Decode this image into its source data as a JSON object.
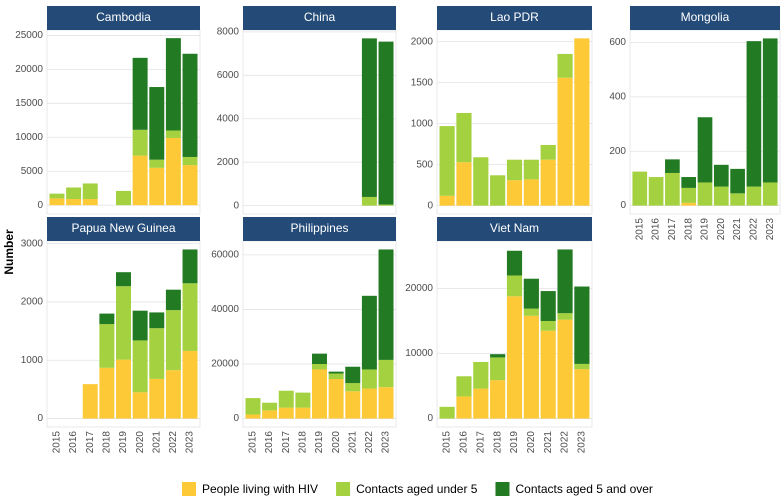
{
  "chart_data": {
    "type": "bar",
    "stacked": true,
    "y_label": "Number",
    "grid": true,
    "categories": [
      "2015",
      "2016",
      "2017",
      "2018",
      "2019",
      "2020",
      "2021",
      "2022",
      "2023"
    ],
    "series": [
      {
        "name": "People living with HIV",
        "color": "#fdc936"
      },
      {
        "name": "Contacts aged under 5",
        "color": "#a4d13f"
      },
      {
        "name": "Contacts aged 5 and over",
        "color": "#227a22"
      }
    ],
    "facets": [
      {
        "title": "Cambodia",
        "ylim": [
          -1300,
          25800
        ],
        "yticks": [
          0,
          5000,
          10000,
          15000,
          20000,
          25000
        ],
        "values": [
          [
            1000,
            900,
            900,
            null,
            0,
            7300,
            5500,
            9900,
            5900
          ],
          [
            700,
            1700,
            2300,
            null,
            2100,
            3800,
            1200,
            1100,
            1200
          ],
          [
            0,
            0,
            0,
            null,
            0,
            10600,
            10700,
            13600,
            15200
          ]
        ]
      },
      {
        "title": "China",
        "ylim": [
          -385,
          8085
        ],
        "yticks": [
          0,
          2000,
          4000,
          6000,
          8000
        ],
        "values": [
          [
            null,
            null,
            null,
            null,
            null,
            null,
            null,
            0,
            0
          ],
          [
            null,
            null,
            null,
            null,
            null,
            null,
            null,
            400,
            50
          ],
          [
            null,
            null,
            null,
            null,
            null,
            null,
            null,
            7300,
            7500
          ]
        ]
      },
      {
        "title": "Lao PDR",
        "ylim": [
          -102,
          2142
        ],
        "yticks": [
          0,
          500,
          1000,
          1500,
          2000
        ],
        "values": [
          [
            120,
            530,
            0,
            0,
            310,
            320,
            560,
            1560,
            2040
          ],
          [
            850,
            600,
            590,
            370,
            250,
            240,
            180,
            290,
            0
          ],
          [
            0,
            0,
            0,
            0,
            0,
            0,
            0,
            0,
            0
          ]
        ]
      },
      {
        "title": "Mongolia",
        "ylim": [
          -31,
          646
        ],
        "yticks": [
          0,
          200,
          400,
          600
        ],
        "values": [
          [
            0,
            0,
            0,
            10,
            0,
            0,
            0,
            0,
            0
          ],
          [
            125,
            105,
            120,
            55,
            85,
            70,
            45,
            70,
            85
          ],
          [
            0,
            0,
            50,
            40,
            240,
            80,
            90,
            535,
            530
          ]
        ]
      },
      {
        "title": "Papua New Guinea",
        "ylim": [
          -145,
          3045
        ],
        "yticks": [
          0,
          1000,
          2000,
          3000
        ],
        "values": [
          [
            null,
            null,
            590,
            870,
            1010,
            450,
            680,
            830,
            1160
          ],
          [
            null,
            null,
            0,
            750,
            1260,
            890,
            870,
            1030,
            1160
          ],
          [
            null,
            null,
            0,
            180,
            240,
            510,
            270,
            350,
            580
          ]
        ]
      },
      {
        "title": "Philippines",
        "ylim": [
          -3100,
          65100
        ],
        "yticks": [
          0,
          20000,
          40000,
          60000
        ],
        "values": [
          [
            1500,
            3000,
            4000,
            4000,
            18000,
            14500,
            10000,
            11000,
            11500
          ],
          [
            6000,
            2800,
            6200,
            5500,
            2000,
            2000,
            3000,
            7000,
            10000
          ],
          [
            0,
            0,
            0,
            0,
            3800,
            700,
            6000,
            27000,
            40500
          ]
        ]
      },
      {
        "title": "Viet Nam",
        "ylim": [
          -1300,
          27300
        ],
        "yticks": [
          0,
          10000,
          20000
        ],
        "values": [
          [
            0,
            3400,
            4600,
            5900,
            18800,
            15800,
            13500,
            15200,
            7600
          ],
          [
            1800,
            3100,
            4100,
            3500,
            3200,
            1100,
            1500,
            1000,
            800
          ],
          [
            0,
            0,
            0,
            500,
            3800,
            4600,
            4600,
            9800,
            11900
          ]
        ]
      }
    ]
  }
}
